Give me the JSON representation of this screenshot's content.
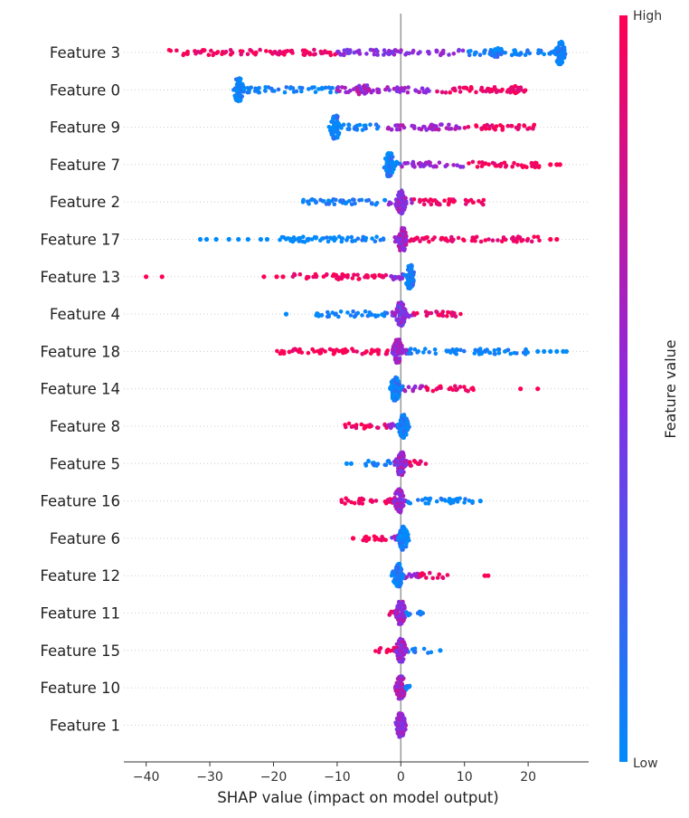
{
  "chart_data": {
    "type": "scatter",
    "subtype": "shap-beeswarm",
    "xlabel": "SHAP value (impact on model output)",
    "xlim": [
      -43.5,
      29.5
    ],
    "xticks": [
      -40,
      -30,
      -20,
      -10,
      0,
      10,
      20
    ],
    "zero_line": 0,
    "grid": "dotted horizontal row lines",
    "colorbar": {
      "label": "Feature value",
      "high_label": "High",
      "low_label": "Low",
      "high_color": "#ff0052",
      "mid_color": "#8a2be2",
      "low_color": "#008bfb",
      "placement": "right"
    },
    "features": [
      {
        "name": "Feature 3",
        "min": -36.5,
        "max": 25.5,
        "spread": [
          {
            "lo": -36.5,
            "hi": -10,
            "val": 0.95
          },
          {
            "lo": -10,
            "hi": 10,
            "val": 0.5
          },
          {
            "lo": 10,
            "hi": 25.5,
            "val": 0.05
          }
        ],
        "clumps": [
          {
            "x": 25,
            "val": 0.02,
            "h": 1.0
          },
          {
            "x": 15,
            "val": 0.05,
            "h": 0.4
          }
        ],
        "outliers": []
      },
      {
        "name": "Feature 0",
        "min": -25.8,
        "max": 20,
        "spread": [
          {
            "lo": -25.8,
            "hi": -10,
            "val": 0.05
          },
          {
            "lo": -10,
            "hi": 5,
            "val": 0.55
          },
          {
            "lo": 5,
            "hi": 20,
            "val": 0.95
          }
        ],
        "clumps": [
          {
            "x": -25.5,
            "val": 0.02,
            "h": 1.0
          },
          {
            "x": -6,
            "val": 0.6,
            "h": 0.4
          },
          {
            "x": 18,
            "val": 0.97,
            "h": 0.35
          }
        ],
        "outliers": []
      },
      {
        "name": "Feature 9",
        "min": -10.8,
        "max": 21,
        "spread": [
          {
            "lo": -10.8,
            "hi": -3,
            "val": 0.05
          },
          {
            "lo": -3,
            "hi": 10,
            "val": 0.6
          },
          {
            "lo": 10,
            "hi": 21,
            "val": 0.95
          }
        ],
        "clumps": [
          {
            "x": -10.3,
            "val": 0.03,
            "h": 1.0
          }
        ],
        "outliers": []
      },
      {
        "name": "Feature 7",
        "min": -2.2,
        "max": 22,
        "spread": [
          {
            "lo": -2.2,
            "hi": 0,
            "val": 0.05
          },
          {
            "lo": 0,
            "hi": 10,
            "val": 0.55
          },
          {
            "lo": 10,
            "hi": 22,
            "val": 0.95
          }
        ],
        "clumps": [
          {
            "x": -1.8,
            "val": 0.03,
            "h": 1.0
          }
        ],
        "outliers": [
          {
            "x": 23.5,
            "val": 1.0
          },
          {
            "x": 24.5,
            "val": 1.0
          },
          {
            "x": 25,
            "val": 1.0
          }
        ]
      },
      {
        "name": "Feature 2",
        "min": -15.5,
        "max": 13.5,
        "spread": [
          {
            "lo": -15.5,
            "hi": -2,
            "val": 0.05
          },
          {
            "lo": -2,
            "hi": 2,
            "val": 0.5
          },
          {
            "lo": 2,
            "hi": 13.5,
            "val": 0.95
          }
        ],
        "clumps": [
          {
            "x": 0,
            "val": 0.5,
            "h": 1.0
          }
        ],
        "outliers": []
      },
      {
        "name": "Feature 17",
        "min": -19,
        "max": 22,
        "spread": [
          {
            "lo": -19,
            "hi": -1,
            "val": 0.03
          },
          {
            "lo": -1,
            "hi": 1,
            "val": 0.5
          },
          {
            "lo": 1,
            "hi": 22,
            "val": 0.95
          }
        ],
        "clumps": [
          {
            "x": 0.2,
            "val": 0.6,
            "h": 1.0
          }
        ],
        "outliers": [
          {
            "x": -31.5,
            "val": 0.0
          },
          {
            "x": -30.5,
            "val": 0.0
          },
          {
            "x": -29,
            "val": 0.0
          },
          {
            "x": -27,
            "val": 0.0
          },
          {
            "x": -25.5,
            "val": 0.0
          },
          {
            "x": -24,
            "val": 0.0
          },
          {
            "x": -22,
            "val": 0.0
          },
          {
            "x": -21,
            "val": 0.0
          },
          {
            "x": 23.5,
            "val": 1.0
          },
          {
            "x": 24.5,
            "val": 1.0
          }
        ]
      },
      {
        "name": "Feature 13",
        "min": -17,
        "max": 1.8,
        "spread": [
          {
            "lo": -17,
            "hi": -2,
            "val": 0.97
          },
          {
            "lo": -2,
            "hi": 0.8,
            "val": 0.5
          },
          {
            "lo": 0.8,
            "hi": 1.8,
            "val": 0.05
          }
        ],
        "clumps": [
          {
            "x": 1.4,
            "val": 0.03,
            "h": 1.0
          }
        ],
        "outliers": [
          {
            "x": -40,
            "val": 1.0
          },
          {
            "x": -37.5,
            "val": 1.0
          },
          {
            "x": -21.5,
            "val": 1.0
          },
          {
            "x": -19.5,
            "val": 1.0
          },
          {
            "x": -18.5,
            "val": 1.0
          }
        ]
      },
      {
        "name": "Feature 4",
        "min": -13.5,
        "max": 9.5,
        "spread": [
          {
            "lo": -13.5,
            "hi": -2,
            "val": 0.05
          },
          {
            "lo": -2,
            "hi": 2,
            "val": 0.5
          },
          {
            "lo": 2,
            "hi": 9.5,
            "val": 0.9
          }
        ],
        "clumps": [
          {
            "x": 0,
            "val": 0.5,
            "h": 1.0
          }
        ],
        "outliers": [
          {
            "x": -18,
            "val": 0.0
          }
        ]
      },
      {
        "name": "Feature 18",
        "min": -19.5,
        "max": 20,
        "spread": [
          {
            "lo": -19.5,
            "hi": -1,
            "val": 0.97
          },
          {
            "lo": -1,
            "hi": 1,
            "val": 0.5
          },
          {
            "lo": 1,
            "hi": 20,
            "val": 0.03
          }
        ],
        "clumps": [
          {
            "x": -0.5,
            "val": 0.6,
            "h": 1.0
          }
        ],
        "outliers": [
          {
            "x": 21.5,
            "val": 0.0
          },
          {
            "x": 22.5,
            "val": 0.0
          },
          {
            "x": 23.5,
            "val": 0.0
          },
          {
            "x": 24.5,
            "val": 0.0
          },
          {
            "x": 25.5,
            "val": 0.0
          },
          {
            "x": 26,
            "val": 0.0
          }
        ]
      },
      {
        "name": "Feature 14",
        "min": -1.2,
        "max": 11.5,
        "spread": [
          {
            "lo": -1.2,
            "hi": 0.5,
            "val": 0.05
          },
          {
            "lo": 0.5,
            "hi": 4,
            "val": 0.6
          },
          {
            "lo": 4,
            "hi": 11.5,
            "val": 0.97
          }
        ],
        "clumps": [
          {
            "x": -0.9,
            "val": 0.03,
            "h": 1.0
          }
        ],
        "outliers": [
          {
            "x": 18.8,
            "val": 1.0
          },
          {
            "x": 21.5,
            "val": 1.0
          }
        ]
      },
      {
        "name": "Feature 8",
        "min": -9,
        "max": 0.6,
        "spread": [
          {
            "lo": -9,
            "hi": -2,
            "val": 0.95
          },
          {
            "lo": -2,
            "hi": 0.2,
            "val": 0.55
          },
          {
            "lo": 0.2,
            "hi": 0.6,
            "val": 0.05
          }
        ],
        "clumps": [
          {
            "x": 0.4,
            "val": 0.02,
            "h": 1.0
          }
        ],
        "outliers": []
      },
      {
        "name": "Feature 5",
        "min": -6,
        "max": 4.2,
        "spread": [
          {
            "lo": -6,
            "hi": -1,
            "val": 0.05
          },
          {
            "lo": -1,
            "hi": 1,
            "val": 0.5
          },
          {
            "lo": 1,
            "hi": 4.2,
            "val": 0.95
          }
        ],
        "clumps": [
          {
            "x": 0,
            "val": 0.55,
            "h": 1.0
          }
        ],
        "outliers": [
          {
            "x": -8.5,
            "val": 0.0
          },
          {
            "x": -7.8,
            "val": 0.0
          }
        ]
      },
      {
        "name": "Feature 16",
        "min": -9.5,
        "max": 11.5,
        "spread": [
          {
            "lo": -9.5,
            "hi": -1,
            "val": 0.97
          },
          {
            "lo": -1,
            "hi": 1,
            "val": 0.5
          },
          {
            "lo": 1,
            "hi": 11.5,
            "val": 0.03
          }
        ],
        "clumps": [
          {
            "x": -0.3,
            "val": 0.6,
            "h": 1.0
          }
        ],
        "outliers": [
          {
            "x": 12.5,
            "val": 0.0
          }
        ]
      },
      {
        "name": "Feature 6",
        "min": -6.5,
        "max": 0.6,
        "spread": [
          {
            "lo": -6.5,
            "hi": -2,
            "val": 0.97
          },
          {
            "lo": -2,
            "hi": 0.2,
            "val": 0.55
          },
          {
            "lo": 0.2,
            "hi": 0.6,
            "val": 0.05
          }
        ],
        "clumps": [
          {
            "x": 0.4,
            "val": 0.02,
            "h": 1.0
          }
        ],
        "outliers": [
          {
            "x": -7.5,
            "val": 1.0
          }
        ]
      },
      {
        "name": "Feature 12",
        "min": -0.8,
        "max": 7.5,
        "spread": [
          {
            "lo": -0.8,
            "hi": 0.5,
            "val": 0.05
          },
          {
            "lo": 0.5,
            "hi": 3,
            "val": 0.6
          },
          {
            "lo": 3,
            "hi": 7.5,
            "val": 0.97
          }
        ],
        "clumps": [
          {
            "x": -0.5,
            "val": 0.03,
            "h": 1.0
          }
        ],
        "outliers": [
          {
            "x": 13.2,
            "val": 1.0
          },
          {
            "x": 13.7,
            "val": 1.0
          }
        ]
      },
      {
        "name": "Feature 11",
        "min": -1.8,
        "max": 3.5,
        "spread": [
          {
            "lo": -1.8,
            "hi": 0,
            "val": 0.95
          },
          {
            "lo": 0,
            "hi": 0.5,
            "val": 0.5
          },
          {
            "lo": 0.5,
            "hi": 3.5,
            "val": 0.05
          }
        ],
        "clumps": [
          {
            "x": 0,
            "val": 0.6,
            "h": 1.0
          }
        ],
        "outliers": []
      },
      {
        "name": "Feature 15",
        "min": -4,
        "max": 4.8,
        "spread": [
          {
            "lo": -4,
            "hi": -0.5,
            "val": 0.97
          },
          {
            "lo": -0.5,
            "hi": 0.5,
            "val": 0.55
          },
          {
            "lo": 0.5,
            "hi": 4.8,
            "val": 0.05
          }
        ],
        "clumps": [
          {
            "x": 0,
            "val": 0.6,
            "h": 1.0
          }
        ],
        "outliers": [
          {
            "x": 6.2,
            "val": 0.0
          }
        ]
      },
      {
        "name": "Feature 10",
        "min": -0.8,
        "max": 1.5,
        "spread": [
          {
            "lo": -0.8,
            "hi": 0,
            "val": 0.95
          },
          {
            "lo": 0,
            "hi": 0.3,
            "val": 0.5
          },
          {
            "lo": 0.3,
            "hi": 1.5,
            "val": 0.05
          }
        ],
        "clumps": [
          {
            "x": 0,
            "val": 0.6,
            "h": 1.0
          }
        ],
        "outliers": []
      },
      {
        "name": "Feature 1",
        "min": -0.4,
        "max": 0.4,
        "spread": [
          {
            "lo": -0.4,
            "hi": 0.4,
            "val": 0.5
          }
        ],
        "clumps": [
          {
            "x": 0,
            "val": 0.55,
            "h": 1.0
          }
        ],
        "outliers": []
      }
    ]
  }
}
